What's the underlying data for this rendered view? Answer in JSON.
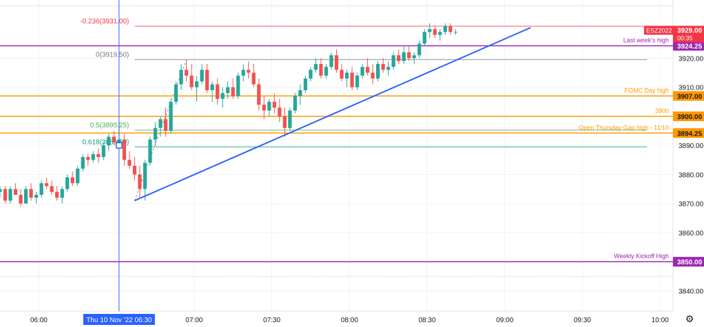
{
  "symbol": "ESZ2022",
  "settings_icon": "gear-icon",
  "colors": {
    "up": "#26a69a",
    "down": "#ef5350",
    "purple": "#9c27b0",
    "orange": "#ff9800",
    "trend": "#2962ff",
    "fib_red": "#f23645",
    "fib_green": "#4caf50",
    "fib_gray": "#787b86",
    "fib_teal": "#089981",
    "price_tag": "#f23645",
    "crosshair": "#2962ff"
  },
  "chart_data": {
    "type": "candlestick",
    "title": "",
    "xlabel": "",
    "ylabel": "",
    "x_range": [
      "05:45",
      "10:05"
    ],
    "ylim": [
      3833,
      3940
    ],
    "grid": true,
    "x_ticks": [
      "06:00",
      "07:00",
      "07:30",
      "08:00",
      "08:30",
      "09:00",
      "09:30",
      "10:00"
    ],
    "crosshair_label": "Thu 10 Nov '22   06:30",
    "crosshair_time": "06:31",
    "y_ticks": [
      "3840.00",
      "3850.00",
      "3860.00",
      "3870.00",
      "3880.00",
      "3890.00",
      "3900.00",
      "3910.00",
      "3920.00"
    ],
    "current_price": {
      "label": "ESZ2022",
      "price": "3929.00",
      "value": 3929.0,
      "countdown": "00:35"
    },
    "horizontal_levels": [
      {
        "label": "Last week's high",
        "price": "3924.25",
        "value": 3924.25,
        "color": "#9c27b0"
      },
      {
        "label": "FOMC Day high",
        "price": "3907.00",
        "value": 3907.0,
        "color": "#ff9800"
      },
      {
        "label": "3900",
        "price": "3900.00",
        "value": 3900.0,
        "color": "#ff9800"
      },
      {
        "label": "Open Thursday Gap high - 11/10",
        "price": "3894.25",
        "value": 3894.25,
        "color": "#ff9800"
      },
      {
        "label": "Weekly Kickoff High",
        "price": "3850.00",
        "value": 3850.0,
        "color": "#9c27b0"
      }
    ],
    "fib_levels": [
      {
        "label": "-0.236(3931.00)",
        "value": 3931.0,
        "color": "#f23645"
      },
      {
        "label": "0(3919.50)",
        "value": 3919.5,
        "color": "#787b86"
      },
      {
        "label": "0.5(3895.25)",
        "value": 3895.25,
        "color": "#4caf50"
      },
      {
        "label": "0.618(3889.50)",
        "value": 3889.5,
        "color": "#089981"
      }
    ],
    "fib_range": {
      "start": "06:37",
      "end": "09:55"
    },
    "trendline": {
      "start": {
        "time": "06:37",
        "value": 3871.0
      },
      "end": {
        "time": "09:10",
        "value": 3930.5
      }
    },
    "candles": [
      [
        "05:45",
        3874,
        3876,
        3872,
        3875
      ],
      [
        "05:47",
        3875,
        3876,
        3870,
        3871
      ],
      [
        "05:49",
        3871,
        3876,
        3870,
        3875
      ],
      [
        "05:51",
        3875,
        3877,
        3873,
        3873
      ],
      [
        "05:53",
        3873,
        3875,
        3869,
        3870
      ],
      [
        "05:55",
        3870,
        3876,
        3870,
        3875
      ],
      [
        "05:57",
        3875,
        3877,
        3871,
        3872
      ],
      [
        "05:59",
        3872,
        3874,
        3870,
        3873
      ],
      [
        "06:01",
        3873,
        3878,
        3872,
        3877
      ],
      [
        "06:03",
        3877,
        3879,
        3875,
        3876
      ],
      [
        "06:05",
        3876,
        3878,
        3873,
        3874
      ],
      [
        "06:07",
        3874,
        3876,
        3871,
        3872
      ],
      [
        "06:09",
        3872,
        3876,
        3870,
        3875
      ],
      [
        "06:11",
        3875,
        3880,
        3874,
        3879
      ],
      [
        "06:13",
        3879,
        3881,
        3876,
        3877
      ],
      [
        "06:15",
        3877,
        3883,
        3876,
        3882
      ],
      [
        "06:17",
        3882,
        3887,
        3881,
        3886
      ],
      [
        "06:19",
        3886,
        3887,
        3883,
        3885
      ],
      [
        "06:21",
        3885,
        3888,
        3884,
        3887
      ],
      [
        "06:23",
        3887,
        3889,
        3884,
        3886
      ],
      [
        "06:25",
        3886,
        3891,
        3885,
        3890
      ],
      [
        "06:27",
        3890,
        3894,
        3888,
        3893
      ],
      [
        "06:29",
        3893,
        3895,
        3890,
        3891
      ],
      [
        "06:31",
        3891,
        3898,
        3889,
        3892
      ],
      [
        "06:33",
        3892,
        3894,
        3883,
        3885
      ],
      [
        "06:35",
        3885,
        3888,
        3882,
        3883
      ],
      [
        "06:37",
        3883,
        3886,
        3878,
        3880
      ],
      [
        "06:39",
        3880,
        3883,
        3872,
        3875
      ],
      [
        "06:41",
        3875,
        3885,
        3871,
        3884
      ],
      [
        "06:43",
        3884,
        3893,
        3883,
        3892
      ],
      [
        "06:45",
        3892,
        3898,
        3890,
        3896
      ],
      [
        "06:47",
        3896,
        3900,
        3893,
        3899
      ],
      [
        "06:49",
        3899,
        3903,
        3893,
        3895
      ],
      [
        "06:51",
        3895,
        3906,
        3894,
        3905
      ],
      [
        "06:53",
        3905,
        3912,
        3904,
        3911
      ],
      [
        "06:55",
        3911,
        3918,
        3909,
        3916
      ],
      [
        "06:57",
        3916,
        3919.5,
        3912,
        3914
      ],
      [
        "06:59",
        3914,
        3918,
        3909,
        3910
      ],
      [
        "07:01",
        3910,
        3914,
        3905,
        3912
      ],
      [
        "07:03",
        3912,
        3918,
        3911,
        3916
      ],
      [
        "07:05",
        3916,
        3918,
        3908,
        3909
      ],
      [
        "07:07",
        3909,
        3912,
        3905,
        3911
      ],
      [
        "07:09",
        3911,
        3913,
        3904,
        3906
      ],
      [
        "07:11",
        3906,
        3910,
        3903,
        3908
      ],
      [
        "07:13",
        3908,
        3912,
        3906,
        3910
      ],
      [
        "07:15",
        3910,
        3913,
        3906,
        3907
      ],
      [
        "07:17",
        3907,
        3915,
        3906,
        3914
      ],
      [
        "07:19",
        3914,
        3918,
        3912,
        3916
      ],
      [
        "07:21",
        3916,
        3919,
        3913,
        3915
      ],
      [
        "07:23",
        3915,
        3918,
        3910,
        3911
      ],
      [
        "07:25",
        3911,
        3913,
        3902,
        3904
      ],
      [
        "07:27",
        3904,
        3907,
        3899,
        3902
      ],
      [
        "07:29",
        3902,
        3906,
        3900,
        3905
      ],
      [
        "07:31",
        3905,
        3908,
        3901,
        3903
      ],
      [
        "07:33",
        3903,
        3906,
        3898,
        3900
      ],
      [
        "07:35",
        3900,
        3903,
        3893,
        3896
      ],
      [
        "07:37",
        3896,
        3903,
        3895,
        3902
      ],
      [
        "07:39",
        3902,
        3908,
        3901,
        3907
      ],
      [
        "07:41",
        3907,
        3911,
        3904,
        3909
      ],
      [
        "07:43",
        3909,
        3914,
        3908,
        3913
      ],
      [
        "07:45",
        3913,
        3917,
        3912,
        3916
      ],
      [
        "07:47",
        3916,
        3920,
        3915,
        3918
      ],
      [
        "07:49",
        3918,
        3920,
        3913,
        3914
      ],
      [
        "07:51",
        3914,
        3918,
        3913,
        3917
      ],
      [
        "07:53",
        3917,
        3922,
        3916,
        3921
      ],
      [
        "07:55",
        3921,
        3923,
        3915,
        3916
      ],
      [
        "07:57",
        3916,
        3918,
        3912,
        3913
      ],
      [
        "07:59",
        3913,
        3916,
        3910,
        3915
      ],
      [
        "08:01",
        3915,
        3917,
        3909,
        3910
      ],
      [
        "08:03",
        3910,
        3915,
        3909,
        3914
      ],
      [
        "08:05",
        3914,
        3918,
        3913,
        3917
      ],
      [
        "08:07",
        3917,
        3920,
        3914,
        3915
      ],
      [
        "08:09",
        3915,
        3918,
        3911,
        3913
      ],
      [
        "08:11",
        3913,
        3919,
        3912,
        3918
      ],
      [
        "08:13",
        3918,
        3920,
        3915,
        3916
      ],
      [
        "08:15",
        3916,
        3919,
        3914,
        3917
      ],
      [
        "08:17",
        3917,
        3922,
        3916,
        3921
      ],
      [
        "08:19",
        3921,
        3923,
        3918,
        3919
      ],
      [
        "08:21",
        3919,
        3924,
        3918,
        3922
      ],
      [
        "08:23",
        3922,
        3924,
        3919,
        3920
      ],
      [
        "08:25",
        3920,
        3922,
        3918,
        3921
      ],
      [
        "08:27",
        3921,
        3926,
        3920,
        3925
      ],
      [
        "08:29",
        3925,
        3930,
        3924,
        3929
      ],
      [
        "08:31",
        3929,
        3932,
        3927,
        3930
      ],
      [
        "08:33",
        3930,
        3931,
        3927,
        3928
      ],
      [
        "08:35",
        3928,
        3930,
        3926,
        3929
      ],
      [
        "08:37",
        3929,
        3932,
        3928,
        3931
      ],
      [
        "08:39",
        3931,
        3932,
        3928,
        3929
      ],
      [
        "08:41",
        3929,
        3930,
        3928,
        3929
      ]
    ]
  }
}
